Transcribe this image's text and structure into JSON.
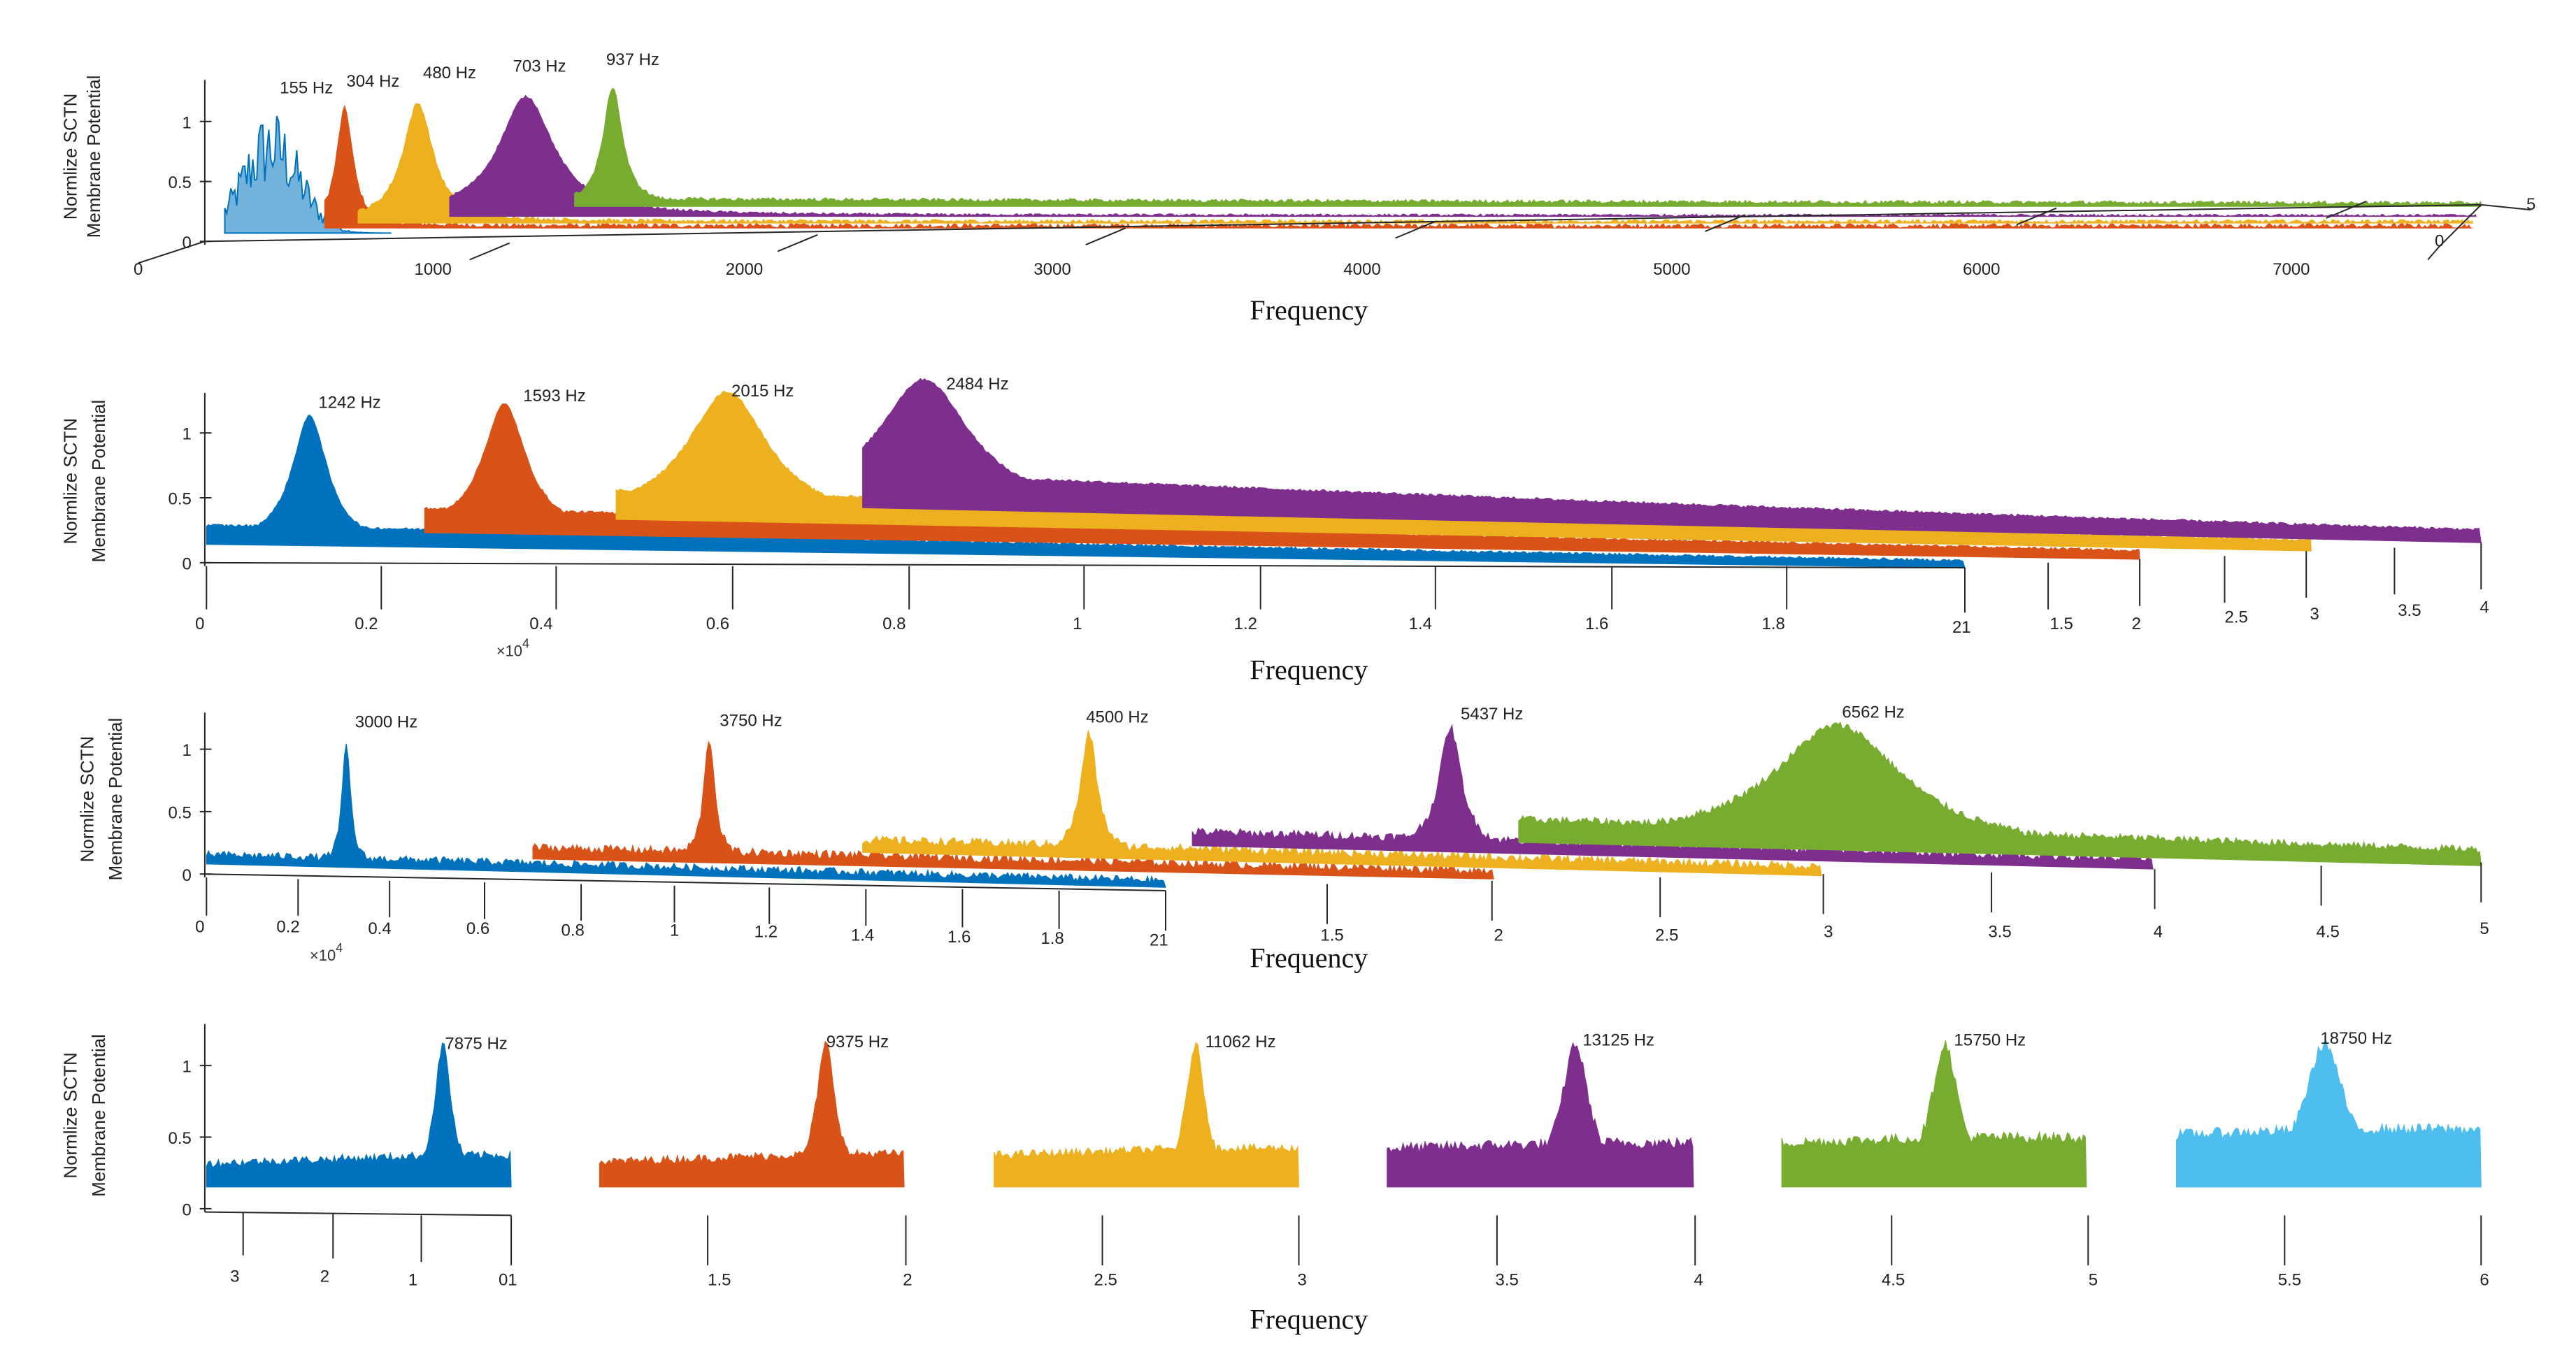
{
  "chart_data": [
    {
      "type": "area",
      "title": "",
      "ylabel": [
        "Normlize SCTN",
        "Membrane Potential"
      ],
      "xlabel": "Frequency",
      "y_ticks": [
        "0",
        "0.5",
        "1"
      ],
      "x_ticks": [
        "0",
        "1000",
        "2000",
        "3000",
        "4000",
        "5000",
        "6000",
        "7000"
      ],
      "depth_ticks": [
        "0",
        "5"
      ],
      "exponent_label": "",
      "series": [
        {
          "name": "155 Hz",
          "peak_hz": 155,
          "color": "#0072BD"
        },
        {
          "name": "304 Hz",
          "peak_hz": 304,
          "color": "#D95319"
        },
        {
          "name": "480 Hz",
          "peak_hz": 480,
          "color": "#EDB120"
        },
        {
          "name": "703 Hz",
          "peak_hz": 703,
          "color": "#7E2F8E"
        },
        {
          "name": "937 Hz",
          "peak_hz": 937,
          "color": "#77AC30"
        }
      ]
    },
    {
      "type": "area",
      "title": "",
      "ylabel": [
        "Normlize SCTN",
        "Membrane Potential"
      ],
      "xlabel": "Frequency",
      "y_ticks": [
        "0",
        "0.5",
        "1"
      ],
      "x_ticks": [
        "0",
        "0.2",
        "0.4",
        "0.6",
        "0.8",
        "1",
        "1.2",
        "1.4",
        "1.6",
        "1.8",
        "21",
        "1.5",
        "2",
        "2.5",
        "3",
        "3.5",
        "4"
      ],
      "exponent_label": "×10",
      "exponent_power": "4",
      "series": [
        {
          "name": "1242 Hz",
          "peak_hz": 1242,
          "color": "#0072BD"
        },
        {
          "name": "1593 Hz",
          "peak_hz": 1593,
          "color": "#D95319"
        },
        {
          "name": "2015 Hz",
          "peak_hz": 2015,
          "color": "#EDB120"
        },
        {
          "name": "2484 Hz",
          "peak_hz": 2484,
          "color": "#7E2F8E"
        }
      ]
    },
    {
      "type": "area",
      "title": "",
      "ylabel": [
        "Normlize SCTN",
        "Membrane Potential"
      ],
      "xlabel": "Frequency",
      "y_ticks": [
        "0",
        "0.5",
        "1"
      ],
      "x_ticks": [
        "0",
        "0.2",
        "0.4",
        "0.6",
        "0.8",
        "1",
        "1.2",
        "1.4",
        "1.6",
        "1.8",
        "21",
        "1.5",
        "2",
        "2.5",
        "3",
        "3.5",
        "4",
        "4.5",
        "5"
      ],
      "exponent_label": "×10",
      "exponent_power": "4",
      "series": [
        {
          "name": "3000 Hz",
          "peak_hz": 3000,
          "color": "#0072BD"
        },
        {
          "name": "3750 Hz",
          "peak_hz": 3750,
          "color": "#D95319"
        },
        {
          "name": "4500 Hz",
          "peak_hz": 4500,
          "color": "#EDB120"
        },
        {
          "name": "5437 Hz",
          "peak_hz": 5437,
          "color": "#7E2F8E"
        },
        {
          "name": "6562 Hz",
          "peak_hz": 6562,
          "color": "#77AC30"
        }
      ]
    },
    {
      "type": "area",
      "title": "",
      "ylabel": [
        "Normlize SCTN",
        "Membrane Potential"
      ],
      "xlabel": "Frequency",
      "y_ticks": [
        "0",
        "0.5",
        "1"
      ],
      "x_ticks": [
        "3",
        "2",
        "1",
        "01",
        "1.5",
        "2",
        "2.5",
        "3",
        "3.5",
        "4",
        "4.5",
        "5",
        "5.5",
        "6"
      ],
      "exponent_label": "",
      "series": [
        {
          "name": "7875 Hz",
          "peak_hz": 7875,
          "color": "#0072BD"
        },
        {
          "name": "9375 Hz",
          "peak_hz": 9375,
          "color": "#D95319"
        },
        {
          "name": "11062 Hz",
          "peak_hz": 11062,
          "color": "#EDB120"
        },
        {
          "name": "13125 Hz",
          "peak_hz": 13125,
          "color": "#7E2F8E"
        },
        {
          "name": "15750 Hz",
          "peak_hz": 15750,
          "color": "#77AC30"
        },
        {
          "name": "18750 Hz",
          "peak_hz": 18750,
          "color": "#4DBEEE"
        }
      ]
    }
  ]
}
